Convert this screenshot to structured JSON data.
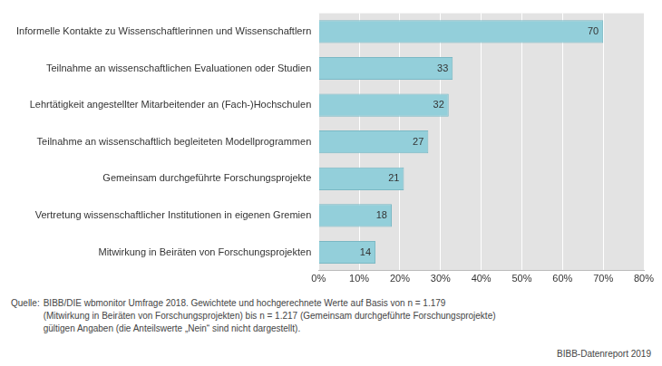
{
  "chart_data": {
    "type": "bar",
    "orientation": "horizontal",
    "categories": [
      "Informelle Kontakte zu Wissenschaftlerinnen und Wissenschaftlern",
      "Teilnahme an wissenschaftlichen Evaluationen oder Studien",
      "Lehrtätigkeit angestellter Mitarbeitender an (Fach-)Hochschulen",
      "Teilnahme an wissenschaftlich begleiteten Modellprogrammen",
      "Gemeinsam durchgeführte Forschungsprojekte",
      "Vertretung wissenschaftlicher Institutionen in eigenen Gremien",
      "Mitwirkung in Beiräten von Forschungsprojekten"
    ],
    "values": [
      70,
      33,
      32,
      27,
      21,
      18,
      14
    ],
    "color": "#93cfda",
    "data_labels": true,
    "grid": true,
    "xlim": [
      0,
      80
    ],
    "xticks": [
      {
        "value": 0,
        "label": "0%"
      },
      {
        "value": 10,
        "label": "10%"
      },
      {
        "value": 20,
        "label": "20%"
      },
      {
        "value": 30,
        "label": "30%"
      },
      {
        "value": 40,
        "label": "40%"
      },
      {
        "value": 50,
        "label": "50%"
      },
      {
        "value": 60,
        "label": "60%"
      },
      {
        "value": 70,
        "label": "70%"
      },
      {
        "value": 80,
        "label": "80%"
      }
    ],
    "source_label": "Quelle:",
    "source": [
      "BIBB/DIE wbmonitor Umfrage 2018. Gewichtete und hochgerechnete Werte auf Basis von n = 1.179",
      "(Mitwirkung in Beiräten von Forschungsprojekten) bis n = 1.217 (Gemeinsam durchgeführte Forschungsprojekte)",
      "gültigen Angaben (die Anteilswerte „Nein“ sind nicht dargestellt)."
    ],
    "credit": "BIBB-Datenreport 2019"
  }
}
